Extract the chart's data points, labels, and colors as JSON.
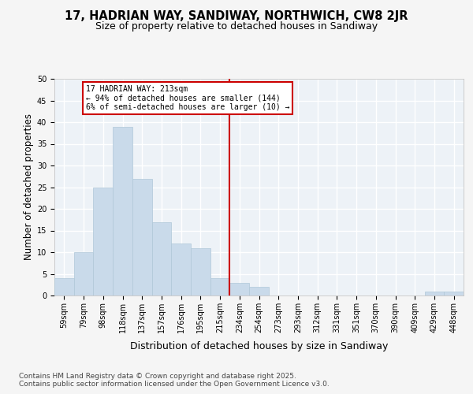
{
  "title": "17, HADRIAN WAY, SANDIWAY, NORTHWICH, CW8 2JR",
  "subtitle": "Size of property relative to detached houses in Sandiway",
  "xlabel": "Distribution of detached houses by size in Sandiway",
  "ylabel": "Number of detached properties",
  "bar_labels": [
    "59sqm",
    "79sqm",
    "98sqm",
    "118sqm",
    "137sqm",
    "157sqm",
    "176sqm",
    "195sqm",
    "215sqm",
    "234sqm",
    "254sqm",
    "273sqm",
    "293sqm",
    "312sqm",
    "331sqm",
    "351sqm",
    "370sqm",
    "390sqm",
    "409sqm",
    "429sqm",
    "448sqm"
  ],
  "bar_values": [
    4,
    10,
    25,
    39,
    27,
    17,
    12,
    11,
    4,
    3,
    2,
    0,
    0,
    0,
    0,
    0,
    0,
    0,
    0,
    1,
    1
  ],
  "bar_color": "#c9daea",
  "bar_edge_color": "#b0c8d8",
  "property_label": "17 HADRIAN WAY: 213sqm",
  "annotation_line1": "← 94% of detached houses are smaller (144)",
  "annotation_line2": "6% of semi-detached houses are larger (10) →",
  "vline_x_index": 8.5,
  "annotation_box_color": "#cc0000",
  "ylim": [
    0,
    50
  ],
  "yticks": [
    0,
    5,
    10,
    15,
    20,
    25,
    30,
    35,
    40,
    45,
    50
  ],
  "footer_line1": "Contains HM Land Registry data © Crown copyright and database right 2025.",
  "footer_line2": "Contains public sector information licensed under the Open Government Licence v3.0.",
  "background_color": "#edf2f7",
  "grid_color": "#ffffff",
  "title_fontsize": 10.5,
  "subtitle_fontsize": 9,
  "axis_label_fontsize": 8.5,
  "tick_fontsize": 7,
  "footer_fontsize": 6.5,
  "annot_fontsize": 7
}
